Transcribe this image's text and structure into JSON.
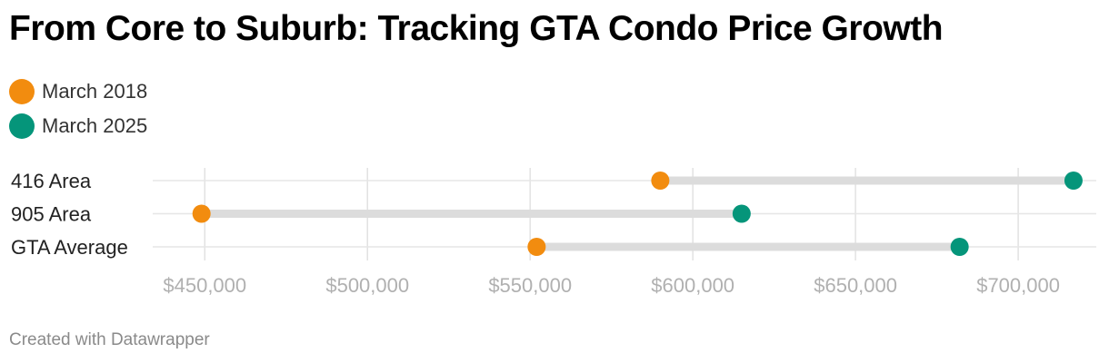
{
  "title": "From Core to Suburb: Tracking GTA Condo Price Growth",
  "footer": "Created with Datawrapper",
  "legend": [
    {
      "label": "March 2018",
      "color": "#f28c0f"
    },
    {
      "label": "March 2025",
      "color": "#05957a"
    }
  ],
  "chart_data": {
    "type": "dumbbell",
    "title": "From Core to Suburb: Tracking GTA Condo Price Growth",
    "categories": [
      "416 Area",
      "905 Area",
      "GTA Average"
    ],
    "series": [
      {
        "name": "March 2018",
        "color": "#f28c0f",
        "values": [
          590000,
          449000,
          552000
        ]
      },
      {
        "name": "March 2025",
        "color": "#05957a",
        "values": [
          717000,
          615000,
          682000
        ]
      }
    ],
    "xlim": [
      434000,
      724000
    ],
    "xticks": [
      450000,
      500000,
      550000,
      600000,
      650000,
      700000
    ],
    "xtick_labels": [
      "$450,000",
      "$500,000",
      "$550,000",
      "$600,000",
      "$650,000",
      "$700,000"
    ],
    "grid": true
  }
}
